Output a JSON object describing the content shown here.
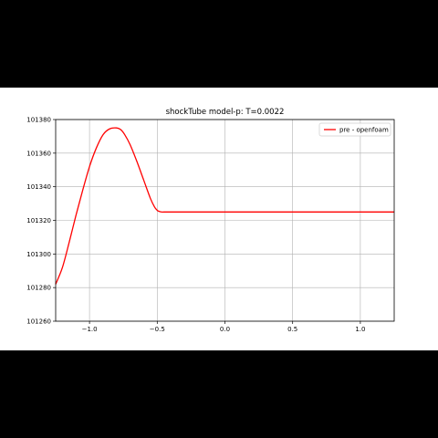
{
  "chart_data": {
    "type": "line",
    "title": "shockTube model-p: T=0.0022",
    "xlabel": "",
    "ylabel": "",
    "xlim": [
      -1.25,
      1.25
    ],
    "ylim": [
      101260,
      101380
    ],
    "x_ticks": [
      -1.0,
      -0.5,
      0.0,
      0.5,
      1.0
    ],
    "x_tick_labels": [
      "−1.0",
      "−0.5",
      "0.0",
      "0.5",
      "1.0"
    ],
    "y_ticks": [
      101260,
      101280,
      101300,
      101320,
      101340,
      101360,
      101380
    ],
    "y_tick_labels": [
      "101260",
      "101280",
      "101300",
      "101320",
      "101340",
      "101360",
      "101380"
    ],
    "grid": true,
    "legend_position": "top-right",
    "series": [
      {
        "name": "pre - openfoam",
        "color": "#ff0000",
        "x": [
          -1.25,
          -1.2,
          -1.15,
          -1.1,
          -1.05,
          -1.0,
          -0.95,
          -0.9,
          -0.85,
          -0.8,
          -0.77,
          -0.74,
          -0.7,
          -0.65,
          -0.6,
          -0.55,
          -0.52,
          -0.5,
          -0.49,
          -0.47,
          -0.45,
          -0.4,
          0.0,
          0.5,
          1.0,
          1.25
        ],
        "y": [
          101282,
          101292,
          101307,
          101323,
          101338,
          101352,
          101363,
          101371,
          101374.5,
          101375,
          101374,
          101371,
          101365,
          101355,
          101344,
          101333,
          101328,
          101326,
          101325.5,
          101325,
          101325,
          101325,
          101325,
          101325,
          101325,
          101325
        ]
      }
    ]
  }
}
